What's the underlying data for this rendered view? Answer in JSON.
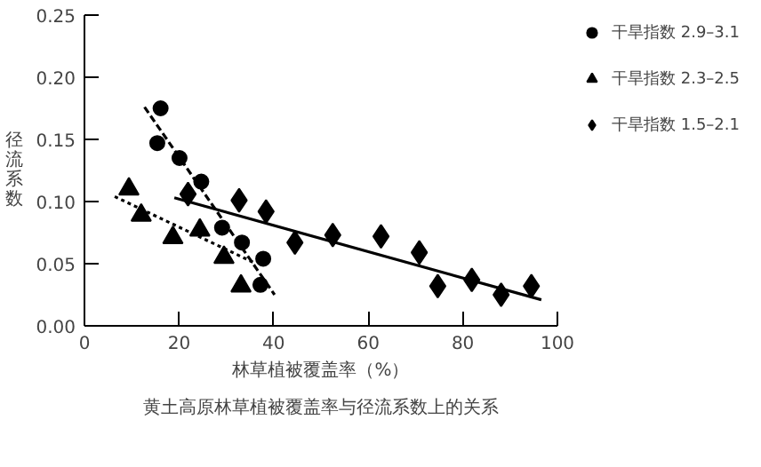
{
  "chart_data": {
    "type": "scatter",
    "xlabel": "林草植被覆盖率（%）",
    "ylabel": "径流系数",
    "annotations": [
      "黄土高原林草植被覆盖率与径流系数上的关系"
    ],
    "xlim": [
      0,
      100
    ],
    "ylim": [
      0,
      0.25
    ],
    "xticks": [
      0,
      20,
      40,
      60,
      80,
      100
    ],
    "yticks": [
      {
        "value": 0,
        "label": "0.00"
      },
      0.05,
      {
        "value": 0.1,
        "label": "0.10"
      },
      0.15,
      {
        "value": 0.2,
        "label": "0.20"
      },
      0.25
    ],
    "grid": false,
    "legend": "top right",
    "series": [
      {
        "name": "干旱指数 2.9–3.1",
        "color": "#000000",
        "marker": "circle",
        "x": [
          16.1,
          15.4,
          20.1,
          24.7,
          29.1,
          33.3,
          37.8,
          37.2
        ],
        "values": [
          0.175,
          0.147,
          0.135,
          0.116,
          0.079,
          0.067,
          0.054,
          0.033
        ]
      },
      {
        "name": "干旱指数 2.3–2.5",
        "color": "#000000",
        "marker": "triangle",
        "x": [
          9.4,
          12.0,
          18.7,
          24.4,
          29.5,
          33.1
        ],
        "values": [
          0.11,
          0.089,
          0.071,
          0.077,
          0.055,
          0.032
        ]
      },
      {
        "name": "干旱指数 1.5–2.1",
        "color": "#000000",
        "marker": "diamond",
        "x": [
          21.9,
          32.7,
          38.4,
          44.5,
          52.5,
          62.7,
          70.8,
          74.7,
          81.9,
          88.1,
          94.5
        ],
        "values": [
          0.106,
          0.101,
          0.092,
          0.067,
          0.073,
          0.072,
          0.059,
          0.032,
          0.037,
          0.025,
          0.032
        ]
      },
      {
        "type": "line",
        "color": "#000000",
        "line_style": "dashed",
        "x": [
          12.7,
          40.2
        ],
        "values": [
          0.176,
          0.025
        ]
      },
      {
        "type": "line",
        "color": "#000000",
        "line_style": "dotted",
        "x": [
          6.4,
          36.3
        ],
        "values": [
          0.104,
          0.05
        ]
      },
      {
        "type": "line",
        "color": "#000000",
        "line_style": "solid",
        "x": [
          19,
          96.6
        ],
        "values": [
          0.103,
          0.021
        ]
      }
    ]
  }
}
